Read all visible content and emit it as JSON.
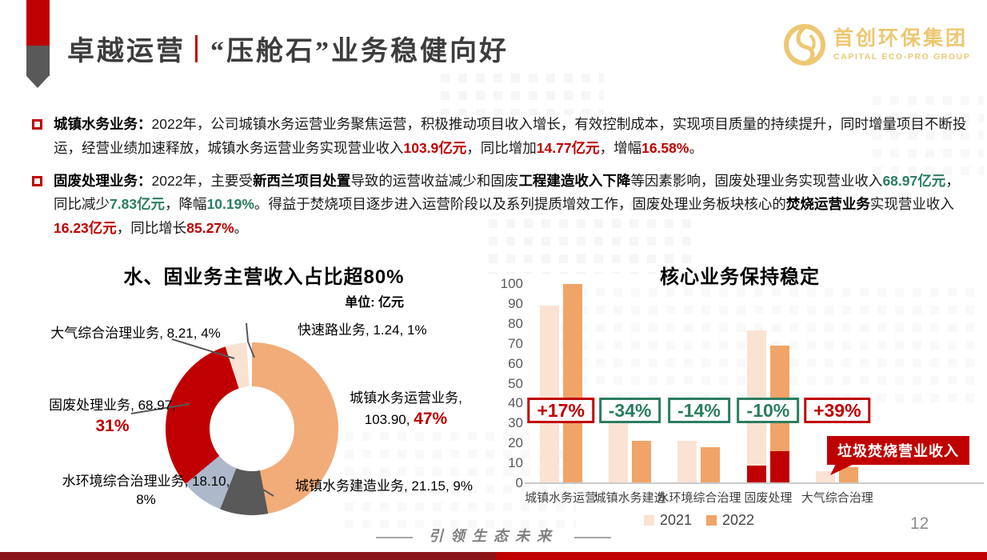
{
  "header": {
    "title_left": "卓越运营",
    "title_right": "“压舱石”业务稳健向好",
    "logo_cn": "首创环保集团",
    "logo_en": "CAPITAL ECO-PRO GROUP",
    "logo_color": "#EDC772"
  },
  "bullets": [
    {
      "segments": [
        {
          "t": "城镇水务业务：",
          "s": "b"
        },
        {
          "t": "2022年，公司城镇水务运营业务聚焦运营，积极推动项目收入增长，有效控制成本，实现项目质量的持续提升，同时增量项目不断投运，经营业绩加速释放，城镇水务运营业务实现营业收入",
          "s": "n"
        },
        {
          "t": "103.9亿元",
          "s": "red"
        },
        {
          "t": "，同比增加",
          "s": "n"
        },
        {
          "t": "14.77亿元",
          "s": "red"
        },
        {
          "t": "，增幅",
          "s": "n"
        },
        {
          "t": "16.58%",
          "s": "red"
        },
        {
          "t": "。",
          "s": "n"
        }
      ]
    },
    {
      "segments": [
        {
          "t": "固废处理业务：",
          "s": "b"
        },
        {
          "t": "2022年，主要受",
          "s": "n"
        },
        {
          "t": "新西兰项目处置",
          "s": "b"
        },
        {
          "t": "导致的运营收益减少和固废",
          "s": "n"
        },
        {
          "t": "工程建造收入下降",
          "s": "b"
        },
        {
          "t": "等因素影响，固废处理业务实现营业收入",
          "s": "n"
        },
        {
          "t": "68.97亿元",
          "s": "green"
        },
        {
          "t": "，同比减少",
          "s": "n"
        },
        {
          "t": "7.83亿元",
          "s": "green"
        },
        {
          "t": "，降幅",
          "s": "n"
        },
        {
          "t": "10.19%",
          "s": "green"
        },
        {
          "t": "。得益于焚烧项目逐步进入运营阶段以及系列提质增效工作，固废处理业务板块核心的",
          "s": "n"
        },
        {
          "t": "焚烧运营业务",
          "s": "b"
        },
        {
          "t": "实现营业收入",
          "s": "n"
        },
        {
          "t": "16.23亿元",
          "s": "red"
        },
        {
          "t": "，同比增长",
          "s": "n"
        },
        {
          "t": "85.27%",
          "s": "red"
        },
        {
          "t": "。",
          "s": "n"
        }
      ]
    }
  ],
  "chart_data": [
    {
      "type": "pie",
      "title": "水、固业务主营收入占比超80%",
      "unit_label": "单位: 亿元",
      "donut": true,
      "start_angle_deg": 0,
      "slices": [
        {
          "label": "城镇水务运营业务",
          "value": 103.9,
          "value_text": "103.90",
          "share": 47,
          "pct_text": "47%",
          "color": "#F1AC79",
          "emph": true
        },
        {
          "label": "城镇水务建造业务",
          "value": 21.15,
          "value_text": "21.15",
          "share": 9,
          "pct_text": "9%",
          "color": "#595959",
          "emph": false
        },
        {
          "label": "水环境综合治理业务",
          "value": 18.1,
          "value_text": "18.10",
          "share": 8,
          "pct_text": "8%",
          "color": "#AEB8CB",
          "emph": false
        },
        {
          "label": "固废处理业务",
          "value": 68.97,
          "value_text": "68.97",
          "share": 31,
          "pct_text": "31%",
          "color": "#C00000",
          "emph": true
        },
        {
          "label": "大气综合治理业务",
          "value": 8.21,
          "value_text": "8.21",
          "share": 4,
          "pct_text": "4%",
          "color": "#F8E2D2",
          "emph": false
        },
        {
          "label": "快速路业务",
          "value": 1.24,
          "value_text": "1.24",
          "share": 1,
          "pct_text": "1%",
          "color": "#FFFFFF",
          "emph": false
        }
      ]
    },
    {
      "type": "bar",
      "title": "核心业务保持稳定",
      "ylim": [
        0,
        100
      ],
      "yticks": [
        0,
        10,
        20,
        30,
        40,
        50,
        60,
        70,
        80,
        90,
        100
      ],
      "grid": false,
      "legend_position": "bottom",
      "series": [
        {
          "name": "2021",
          "color": "#FAE3D3"
        },
        {
          "name": "2022",
          "color": "#F0A468"
        }
      ],
      "badge_colors": {
        "up": "#C00000",
        "down": "#2B7D5F"
      },
      "incineration_color": "#C00000",
      "callout": "垃圾焚烧营业收入",
      "groups": [
        {
          "category": "城镇水务运营",
          "v2021": 89.1,
          "v2022": 103.9,
          "red2021": 0,
          "red2022": 0,
          "badge": "+17%",
          "dir": "up"
        },
        {
          "category": "城镇水务建造",
          "v2021": 32.1,
          "v2022": 21.15,
          "red2021": 0,
          "red2022": 0,
          "badge": "-34%",
          "dir": "down"
        },
        {
          "category": "水环境综合治理",
          "v2021": 21.1,
          "v2022": 18.1,
          "red2021": 0,
          "red2022": 0,
          "badge": "-14%",
          "dir": "down"
        },
        {
          "category": "固废处理",
          "v2021": 76.8,
          "v2022": 68.97,
          "red2021": 8.8,
          "red2022": 16.23,
          "badge": "-10%",
          "dir": "down"
        },
        {
          "category": "大气综合治理",
          "v2021": 5.9,
          "v2022": 8.21,
          "red2021": 0,
          "red2022": 0,
          "badge": "+39%",
          "dir": "up"
        }
      ]
    }
  ],
  "footer": {
    "slogan": "引领生态未来",
    "page_number": "12"
  },
  "colors": {
    "accent_red": "#C00000",
    "dark_red_strip": "#8A1518",
    "green": "#2B7D5F",
    "gray": "#595959"
  }
}
